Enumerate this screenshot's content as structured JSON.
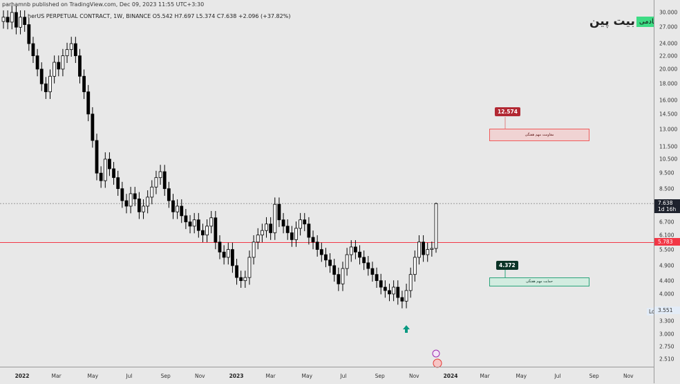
{
  "header": {
    "published": "parhamnb published on TradingView.com, Dec 09, 2023 11:55 UTC+3:30",
    "symbol": "herUS PERPETUAL CONTRACT, 1W, BINANCE  O5.542  H7.697  L5.374  C7.638  +2.096 (+37.82%)"
  },
  "logo": {
    "name": "بیت پین",
    "badge": "آکادمی"
  },
  "chart_data": {
    "type": "candlestick",
    "scale": "log",
    "ylim": [
      2.4,
      31
    ],
    "y_ticks": [
      "30.000",
      "27.000",
      "24.000",
      "22.000",
      "20.000",
      "18.000",
      "16.000",
      "14.500",
      "13.000",
      "11.500",
      "10.500",
      "9.500",
      "8.500",
      "6.700",
      "6.100",
      "5.500",
      "4.900",
      "4.400",
      "4.000",
      "3.300",
      "3.000",
      "2.750",
      "2.510"
    ],
    "x_ticks": [
      {
        "label": "2022",
        "date": 2022.0,
        "bold": true
      },
      {
        "label": "Mar",
        "date": 2022.16
      },
      {
        "label": "May",
        "date": 2022.33
      },
      {
        "label": "Jul",
        "date": 2022.5
      },
      {
        "label": "Sep",
        "date": 2022.67
      },
      {
        "label": "Nov",
        "date": 2022.83
      },
      {
        "label": "2023",
        "date": 2023.0,
        "bold": true
      },
      {
        "label": "Mar",
        "date": 2023.16
      },
      {
        "label": "May",
        "date": 2023.33
      },
      {
        "label": "Jul",
        "date": 2023.5
      },
      {
        "label": "Sep",
        "date": 2023.67
      },
      {
        "label": "Nov",
        "date": 2023.83
      },
      {
        "label": "2024",
        "date": 2024.0,
        "bold": true
      },
      {
        "label": "Mar",
        "date": 2024.16
      },
      {
        "label": "May",
        "date": 2024.33
      },
      {
        "label": "Jul",
        "date": 2024.5
      },
      {
        "label": "Sep",
        "date": 2024.67
      },
      {
        "label": "Nov",
        "date": 2024.83
      }
    ],
    "weekly_closes": [
      29,
      28,
      30,
      27,
      29,
      27.5,
      24,
      22,
      20,
      18,
      17,
      19,
      21,
      20,
      22,
      23,
      24,
      22,
      19,
      17,
      14.5,
      12,
      9.5,
      9,
      10.5,
      9.8,
      9.2,
      8.5,
      7.8,
      7.5,
      8.2,
      7.9,
      7.2,
      7.5,
      8.0,
      8.6,
      9.2,
      9.6,
      8.5,
      7.8,
      7.2,
      7.5,
      7.0,
      6.7,
      6.5,
      6.8,
      6.3,
      6.1,
      6.5,
      6.9,
      5.8,
      5.4,
      5.2,
      5.5,
      4.9,
      4.5,
      4.4,
      4.5,
      5.2,
      5.8,
      6.1,
      6.3,
      6.6,
      6.2,
      7.6,
      6.8,
      6.5,
      6.2,
      5.9,
      6.4,
      6.8,
      6.6,
      6.0,
      5.8,
      5.5,
      5.3,
      5.1,
      4.9,
      4.6,
      4.3,
      4.8,
      5.3,
      5.6,
      5.4,
      5.2,
      5.0,
      4.8,
      4.6,
      4.4,
      4.2,
      4.1,
      4.0,
      4.2,
      3.9,
      3.8,
      4.1,
      4.6,
      5.2,
      5.8,
      5.3,
      5.5,
      5.542,
      7.638
    ],
    "last_candle": {
      "open": 5.542,
      "high": 7.697,
      "low": 5.374,
      "close": 7.638
    },
    "current_price": {
      "value": "7.638",
      "countdown": "1d 16h",
      "color": "#1e222d"
    },
    "horizontal_line": {
      "value": "5.783",
      "color": "#f23645"
    },
    "low_marker": {
      "label": "Low",
      "value": "3.551"
    },
    "annotations": [
      {
        "type": "resistance",
        "price_label": "12.574",
        "text": "مقاومت مهم هفتگی",
        "color": "#b22833"
      },
      {
        "type": "support",
        "price_label": "4.372",
        "text": "حمایت مهم هفتگی",
        "color": "#0b3326"
      }
    ]
  }
}
